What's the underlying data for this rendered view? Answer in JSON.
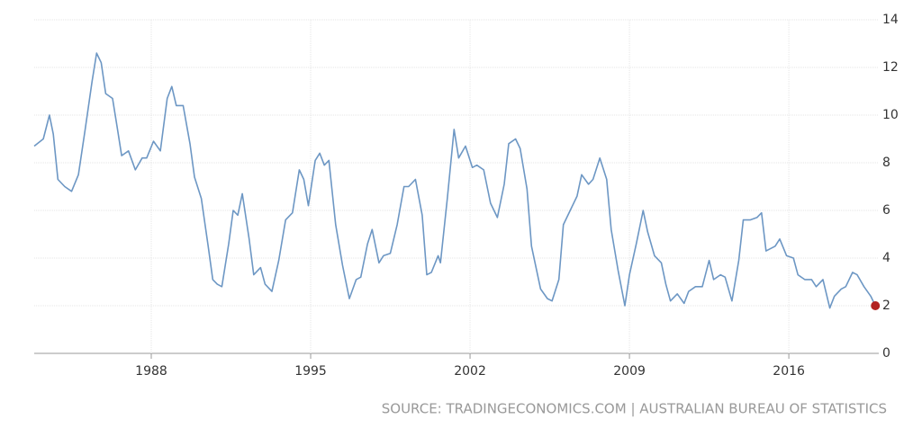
{
  "chart_data": {
    "type": "line",
    "source": "SOURCE: TRADINGECONOMICS.COM | AUSTRALIAN BUREAU OF STATISTICS",
    "x": [
      1982.86,
      1983.26,
      1983.53,
      1983.7,
      1983.9,
      1984.2,
      1984.5,
      1984.8,
      1985.1,
      1985.4,
      1985.6,
      1985.8,
      1986.0,
      1986.3,
      1986.5,
      1986.7,
      1987.0,
      1987.3,
      1987.6,
      1987.8,
      1988.1,
      1988.4,
      1988.7,
      1988.9,
      1989.1,
      1989.4,
      1989.7,
      1989.9,
      1990.2,
      1990.5,
      1990.7,
      1990.9,
      1991.1,
      1991.4,
      1991.6,
      1991.8,
      1992.0,
      1992.3,
      1992.5,
      1992.8,
      1993.0,
      1993.3,
      1993.6,
      1993.9,
      1994.2,
      1994.5,
      1994.7,
      1994.9,
      1995.2,
      1995.4,
      1995.6,
      1995.8,
      1996.1,
      1996.4,
      1996.7,
      1997.0,
      1997.2,
      1997.5,
      1997.7,
      1998.0,
      1998.2,
      1998.5,
      1998.8,
      1999.1,
      1999.3,
      1999.6,
      1999.9,
      2000.1,
      2000.3,
      2000.6,
      2000.7,
      2001.0,
      2001.3,
      2001.5,
      2001.8,
      2002.1,
      2002.3,
      2002.6,
      2002.9,
      2003.2,
      2003.5,
      2003.7,
      2004.0,
      2004.2,
      2004.5,
      2004.7,
      2005.1,
      2005.4,
      2005.6,
      2005.9,
      2006.1,
      2006.4,
      2006.7,
      2006.9,
      2007.2,
      2007.4,
      2007.7,
      2008.0,
      2008.2,
      2008.5,
      2008.8,
      2009.0,
      2009.3,
      2009.6,
      2009.8,
      2010.1,
      2010.4,
      2010.6,
      2010.8,
      2011.1,
      2011.4,
      2011.6,
      2011.9,
      2012.2,
      2012.5,
      2012.7,
      2013.0,
      2013.2,
      2013.5,
      2013.8,
      2014.0,
      2014.3,
      2014.6,
      2014.8,
      2015.0,
      2015.4,
      2015.6,
      2015.9,
      2016.2,
      2016.4,
      2016.7,
      2017.0,
      2017.2,
      2017.5,
      2017.8,
      2018.0,
      2018.3,
      2018.5,
      2018.8,
      2019.0,
      2019.3,
      2019.6,
      2019.8
    ],
    "values": [
      8.7,
      9.0,
      10.0,
      9.2,
      7.3,
      7.0,
      6.8,
      7.5,
      9.4,
      11.4,
      12.6,
      12.2,
      10.9,
      10.7,
      9.5,
      8.3,
      8.5,
      7.7,
      8.2,
      8.2,
      8.9,
      8.5,
      10.7,
      11.2,
      10.4,
      10.4,
      8.8,
      7.4,
      6.5,
      4.5,
      3.1,
      2.9,
      2.8,
      4.6,
      6.0,
      5.8,
      6.7,
      4.8,
      3.3,
      3.6,
      2.9,
      2.6,
      3.9,
      5.6,
      5.9,
      7.7,
      7.3,
      6.2,
      8.1,
      8.4,
      7.9,
      8.1,
      5.4,
      3.7,
      2.3,
      3.1,
      3.2,
      4.6,
      5.2,
      3.8,
      4.1,
      4.2,
      5.4,
      7.0,
      7.0,
      7.3,
      5.8,
      3.3,
      3.4,
      4.1,
      3.8,
      6.5,
      9.4,
      8.2,
      8.7,
      7.8,
      7.9,
      7.7,
      6.3,
      5.7,
      7.1,
      8.8,
      9.0,
      8.6,
      6.9,
      4.5,
      2.7,
      2.3,
      2.2,
      3.1,
      5.4,
      6.0,
      6.6,
      7.5,
      7.1,
      7.3,
      8.2,
      7.3,
      5.2,
      3.5,
      2.0,
      3.3,
      4.6,
      6.0,
      5.1,
      4.1,
      3.8,
      2.9,
      2.2,
      2.5,
      2.1,
      2.6,
      2.8,
      2.8,
      3.9,
      3.1,
      3.3,
      3.2,
      2.2,
      3.9,
      5.6,
      5.6,
      5.7,
      5.9,
      4.3,
      4.5,
      4.8,
      4.1,
      4.0,
      3.3,
      3.1,
      3.1,
      2.8,
      3.1,
      1.9,
      2.4,
      2.7,
      2.8,
      3.4,
      3.3,
      2.8,
      2.4,
      2.0
    ],
    "color": "#6d97c4",
    "last_point_color": "#b22222",
    "xlim": [
      1982.86,
      2019.95
    ],
    "xticks": [
      1988,
      1995,
      2002,
      2009,
      2016
    ],
    "ylim": [
      0,
      14
    ],
    "yticks": [
      0,
      2,
      4,
      6,
      8,
      10,
      12,
      14
    ],
    "grid": true
  }
}
